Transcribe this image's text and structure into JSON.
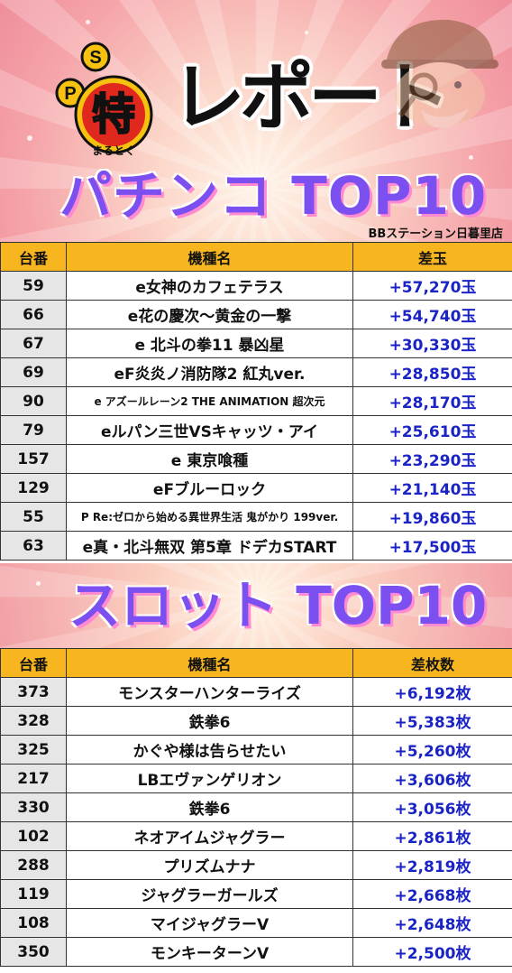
{
  "header": {
    "logo_letters": [
      "P",
      "S"
    ],
    "logo_kanji": "特",
    "logo_sub": "まるとく",
    "report": "レポート",
    "pachinko_title": "パチンコ TOP10",
    "store_name": "BBステーション日暮里店"
  },
  "pachinko": {
    "columns": [
      "台番",
      "機種名",
      "差玉"
    ],
    "rows": [
      {
        "no": "59",
        "name": "e女神のカフェテラス",
        "value": "+57,270玉"
      },
      {
        "no": "66",
        "name": "e花の慶次～黄金の一撃",
        "value": "+54,740玉"
      },
      {
        "no": "67",
        "name": "e 北斗の拳11 暴凶星",
        "value": "+30,330玉"
      },
      {
        "no": "69",
        "name": "eF炎炎ノ消防隊2 紅丸ver.",
        "value": "+28,850玉"
      },
      {
        "no": "90",
        "name": "e アズールレーン2 THE ANIMATION 超次元",
        "value": "+28,170玉"
      },
      {
        "no": "79",
        "name": "eルパン三世VSキャッツ・アイ",
        "value": "+25,610玉"
      },
      {
        "no": "157",
        "name": "e 東京喰種",
        "value": "+23,290玉"
      },
      {
        "no": "129",
        "name": "eFブルーロック",
        "value": "+21,140玉"
      },
      {
        "no": "55",
        "name": "P Re:ゼロから始める異世界生活 鬼がかり 199ver.",
        "value": "+19,860玉"
      },
      {
        "no": "63",
        "name": "e真・北斗無双 第5章 ドデカSTART",
        "value": "+17,500玉"
      }
    ]
  },
  "slot": {
    "title": "スロット TOP10",
    "columns": [
      "台番",
      "機種名",
      "差枚数"
    ],
    "rows": [
      {
        "no": "373",
        "name": "モンスターハンターライズ",
        "value": "+6,192枚"
      },
      {
        "no": "328",
        "name": "鉄拳6",
        "value": "+5,383枚"
      },
      {
        "no": "325",
        "name": "かぐや様は告らせたい",
        "value": "+5,260枚"
      },
      {
        "no": "217",
        "name": "LBエヴァンゲリオン",
        "value": "+3,606枚"
      },
      {
        "no": "330",
        "name": "鉄拳6",
        "value": "+3,056枚"
      },
      {
        "no": "102",
        "name": "ネオアイムジャグラー",
        "value": "+2,861枚"
      },
      {
        "no": "288",
        "name": "プリズムナナ",
        "value": "+2,819枚"
      },
      {
        "no": "119",
        "name": "ジャグラーガールズ",
        "value": "+2,668枚"
      },
      {
        "no": "108",
        "name": "マイジャグラーV",
        "value": "+2,648枚"
      },
      {
        "no": "350",
        "name": "モンキーターンV",
        "value": "+2,500枚"
      }
    ]
  },
  "colors": {
    "header_cell": "#f7b520",
    "value_text": "#1a23c4",
    "title_purple": "#7b4ff0",
    "title_pink": "#ff8ad1",
    "logo_red": "#e0281f",
    "logo_gold": "#f6c20f"
  },
  "icons": [
    "ps-logo-icon",
    "detective-mascot-icon"
  ]
}
